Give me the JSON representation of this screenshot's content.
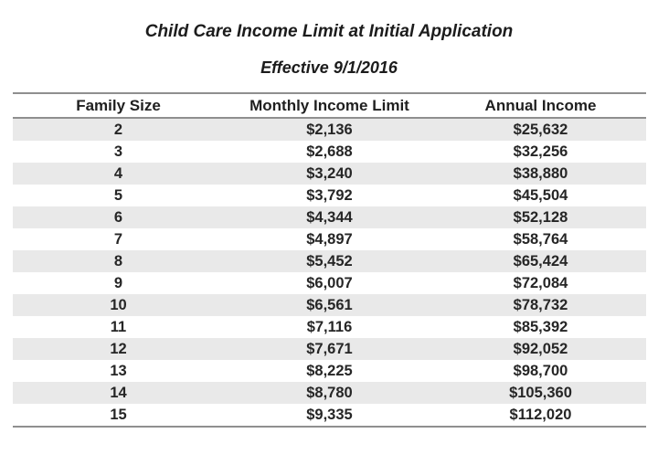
{
  "title": "Child Care Income Limit at Initial Application",
  "subtitle": "Effective 9/1/2016",
  "chart_data": {
    "type": "table",
    "title": "Child Care Income Limit at Initial Application",
    "subtitle": "Effective 9/1/2016",
    "columns": [
      "Family Size",
      "Monthly Income Limit",
      "Annual Income"
    ],
    "rows": [
      [
        "2",
        "$2,136",
        "$25,632"
      ],
      [
        "3",
        "$2,688",
        "$32,256"
      ],
      [
        "4",
        "$3,240",
        "$38,880"
      ],
      [
        "5",
        "$3,792",
        "$45,504"
      ],
      [
        "6",
        "$4,344",
        "$52,128"
      ],
      [
        "7",
        "$4,897",
        "$58,764"
      ],
      [
        "8",
        "$5,452",
        "$65,424"
      ],
      [
        "9",
        "$6,007",
        "$72,084"
      ],
      [
        "10",
        "$6,561",
        "$78,732"
      ],
      [
        "11",
        "$7,116",
        "$85,392"
      ],
      [
        "12",
        "$7,671",
        "$92,052"
      ],
      [
        "13",
        "$8,225",
        "$98,700"
      ],
      [
        "14",
        "$8,780",
        "$105,360"
      ],
      [
        "15",
        "$9,335",
        "$112,020"
      ]
    ],
    "layout_hints": {
      "column_alignment": "center",
      "striped_rows": "family sizes 2,4,6,8,10,12,14 shaded",
      "rules": "horizontal rule above header, below header, below last row"
    }
  },
  "colors": {
    "stripe": "#e9e9e9",
    "rule": "#8f8f8f",
    "text": "#1f1f1f",
    "background": "#ffffff"
  }
}
